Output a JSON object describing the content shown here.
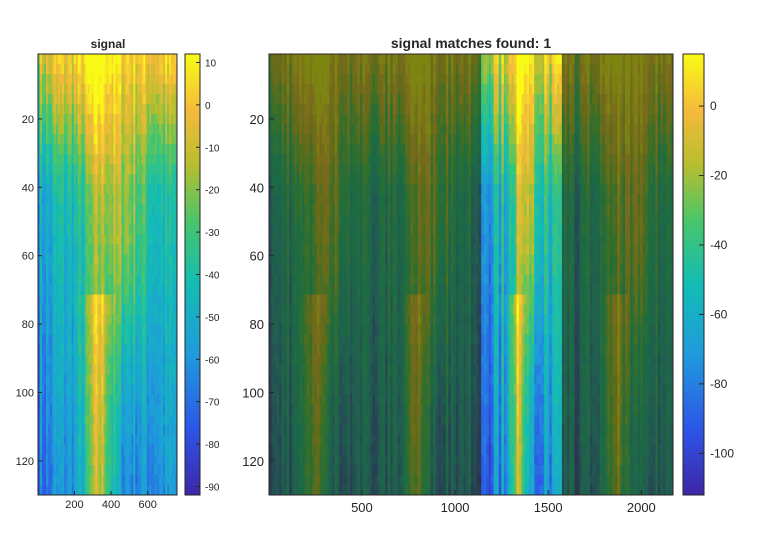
{
  "chart_data": [
    {
      "type": "heatmap",
      "title": "signal",
      "xlabel": "",
      "ylabel": "",
      "xlim": [
        1,
        760
      ],
      "ylim": [
        130,
        1
      ],
      "x_ticks": [
        200,
        400,
        600
      ],
      "y_ticks": [
        20,
        40,
        60,
        80,
        100,
        120
      ],
      "colormap": "parula",
      "colorbar": {
        "range": [
          -92,
          12
        ],
        "ticks": [
          10,
          0,
          -10,
          -20,
          -30,
          -40,
          -50,
          -60,
          -70,
          -80,
          -90
        ]
      },
      "column_bands": [
        {
          "x_range": [
            1,
            60
          ],
          "profile": "mixed_low"
        },
        {
          "x_range": [
            60,
            180
          ],
          "profile": "warm_top_cool_mid"
        },
        {
          "x_range": [
            180,
            320
          ],
          "profile": "warm_top_streaks"
        },
        {
          "x_range": [
            320,
            460
          ],
          "profile": "cool_mid_high"
        },
        {
          "x_range": [
            460,
            620
          ],
          "profile": "warm_center"
        },
        {
          "x_range": [
            620,
            760
          ],
          "profile": "mixed_cool"
        }
      ]
    },
    {
      "type": "heatmap",
      "title": "signal matches found: 1",
      "xlabel": "",
      "ylabel": "",
      "xlim": [
        1,
        2170
      ],
      "ylim": [
        130,
        1
      ],
      "x_ticks": [
        500,
        1000,
        1500,
        2000
      ],
      "y_ticks": [
        20,
        40,
        60,
        80,
        100,
        120
      ],
      "colormap": "parula",
      "colorbar": {
        "range": [
          -112,
          15
        ],
        "ticks": [
          0,
          -20,
          -40,
          -60,
          -80,
          -100
        ]
      },
      "highlighted_match": {
        "x_range": [
          1140,
          1570
        ],
        "count": 1
      },
      "dimmed_overlay": true
    }
  ]
}
